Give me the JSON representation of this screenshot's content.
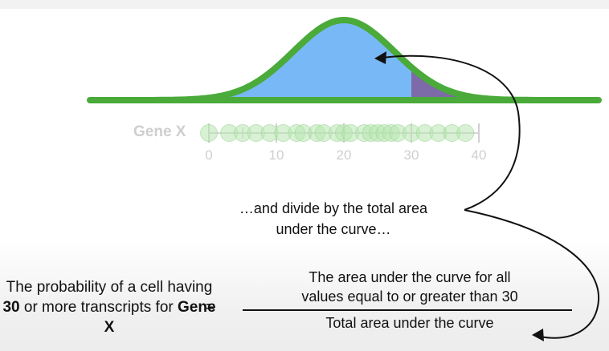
{
  "gene": {
    "label": "Gene X"
  },
  "axis": {
    "ticks": [
      "0",
      "10",
      "20",
      "30",
      "40"
    ],
    "threshold": 30
  },
  "points": [
    0,
    3,
    5,
    7,
    9,
    11,
    13,
    14,
    16,
    17,
    19,
    20,
    21,
    23,
    24,
    25,
    26,
    27,
    28,
    30,
    32,
    34,
    36,
    38
  ],
  "curve": {
    "mean": 20,
    "sd": 7.5,
    "colors": {
      "curve": "#4aaa3a",
      "fill": "#79b8f6",
      "tail": "#7d6aa8",
      "points": "#b8e6b0"
    }
  },
  "caption": {
    "line1": "…and divide by the total area",
    "line2": "under the curve…"
  },
  "equation": {
    "lhs_part1": "The probability of a cell having ",
    "lhs_bold1": "30",
    "lhs_part2": " or more transcripts for ",
    "lhs_bold2": "Gene X",
    "equals": "=",
    "numerator_line1": "The area under the curve for all",
    "numerator_line2": "values equal to or greater than 30",
    "denominator": "Total area under the curve"
  }
}
